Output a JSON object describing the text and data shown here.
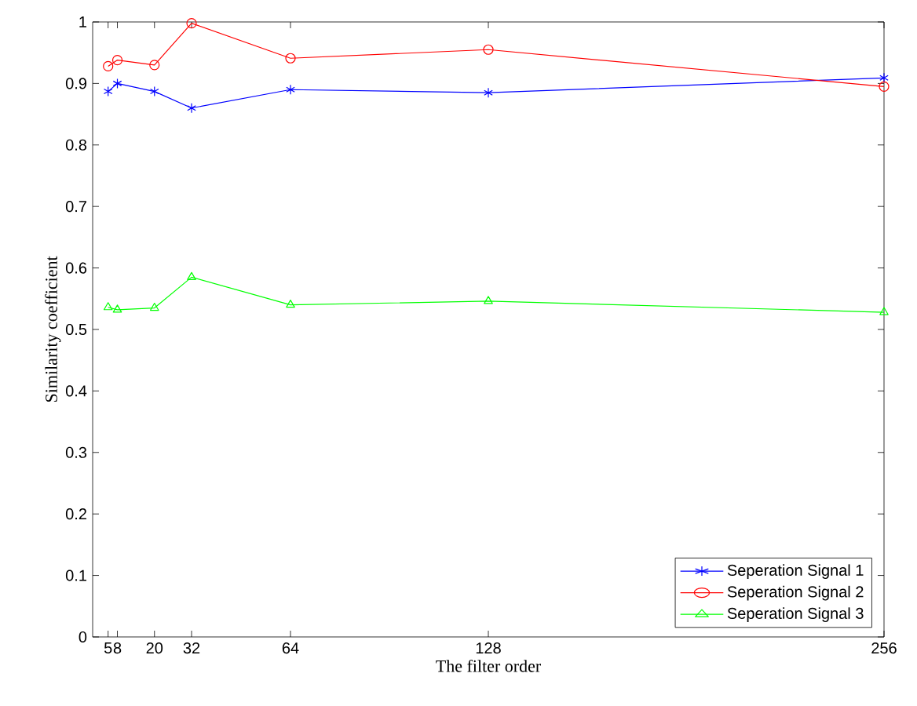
{
  "chart_data": {
    "type": "line",
    "xlabel": "The filter order",
    "ylabel": "Similarity coefficient",
    "x": [
      5,
      8,
      20,
      32,
      64,
      128,
      256
    ],
    "series": [
      {
        "name": "Seperation Signal 1",
        "color": "#0000ff",
        "marker": "cross",
        "values": [
          0.887,
          0.9,
          0.887,
          0.86,
          0.89,
          0.885,
          0.909
        ]
      },
      {
        "name": "Seperation Signal 2",
        "color": "#ff0000",
        "marker": "circle",
        "values": [
          0.928,
          0.938,
          0.93,
          0.998,
          0.941,
          0.955,
          0.895
        ]
      },
      {
        "name": "Seperation Signal 3",
        "color": "#00ff00",
        "marker": "triangle",
        "values": [
          0.536,
          0.532,
          0.535,
          0.585,
          0.54,
          0.546,
          0.528
        ]
      }
    ],
    "xlim": [
      0,
      256
    ],
    "ylim": [
      0,
      1
    ],
    "xticks": [
      5,
      8,
      20,
      32,
      64,
      128,
      256
    ],
    "yticks": [
      0,
      0.1,
      0.2,
      0.3,
      0.4,
      0.5,
      0.6,
      0.7,
      0.8,
      0.9,
      1
    ],
    "grid": false,
    "legend": "bottom right",
    "line_style": "solid"
  }
}
